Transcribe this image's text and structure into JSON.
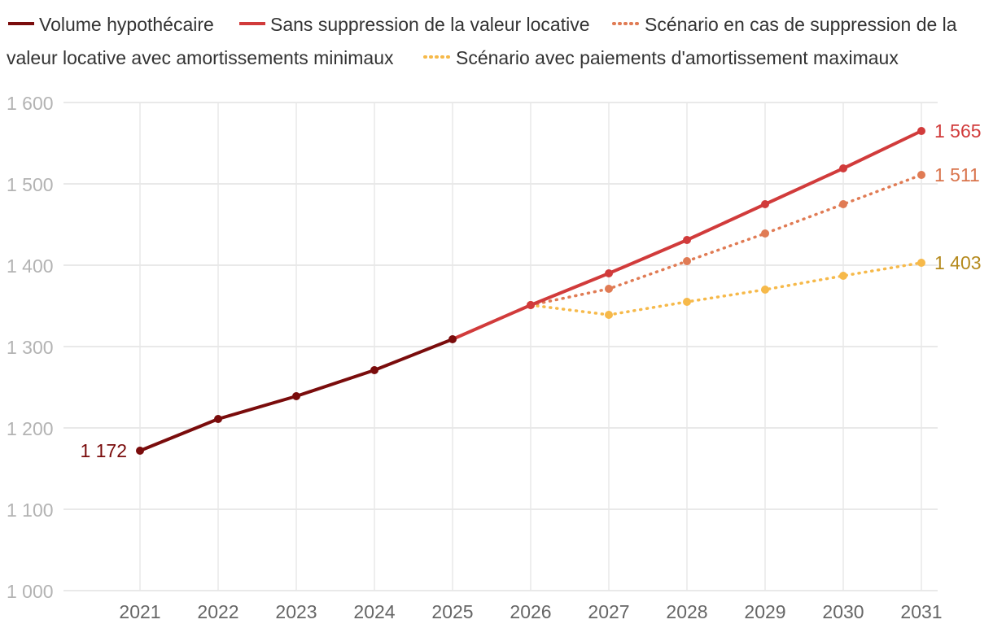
{
  "chart_data": {
    "type": "line",
    "title": "",
    "xlabel": "",
    "ylabel": "",
    "x": [
      "2021",
      "2022",
      "2023",
      "2024",
      "2025",
      "2026",
      "2027",
      "2028",
      "2029",
      "2030",
      "2031"
    ],
    "ylim": [
      1000,
      1600
    ],
    "yticks": [
      1000,
      1100,
      1200,
      1300,
      1400,
      1500,
      1600
    ],
    "ytick_labels": [
      "1 000",
      "1 100",
      "1 200",
      "1 300",
      "1 400",
      "1 500",
      "1 600"
    ],
    "grid": true,
    "legend": "top",
    "series": [
      {
        "name": "Volume hypothécaire",
        "color": "#7a0c0c",
        "style": "solid",
        "x": [
          "2021",
          "2022",
          "2023",
          "2024",
          "2025"
        ],
        "values": [
          1172,
          1211,
          1239,
          1271,
          1309
        ]
      },
      {
        "name": "Sans suppression de la valeur locative",
        "color": "#d13b3b",
        "style": "solid",
        "x": [
          "2025",
          "2026",
          "2027",
          "2028",
          "2029",
          "2030",
          "2031"
        ],
        "values": [
          1309,
          1351,
          1390,
          1431,
          1475,
          1519,
          1565
        ]
      },
      {
        "name": "Scénario en cas de suppression de la valeur locative avec amortissements minimaux",
        "color": "#e07b54",
        "style": "dotted",
        "x": [
          "2026",
          "2027",
          "2028",
          "2029",
          "2030",
          "2031"
        ],
        "values": [
          1351,
          1371,
          1405,
          1439,
          1475,
          1511
        ]
      },
      {
        "name": "Scénario avec paiements d'amortissement maximaux",
        "color": "#f6b94a",
        "style": "dotted",
        "x": [
          "2026",
          "2027",
          "2028",
          "2029",
          "2030",
          "2031"
        ],
        "values": [
          1351,
          1339,
          1355,
          1370,
          1387,
          1403
        ]
      }
    ],
    "annotations": [
      {
        "text": "1 172",
        "x": "2021",
        "value": 1172,
        "color": "#7a0c0c"
      },
      {
        "text": "1 565",
        "x": "2031",
        "value": 1565,
        "color": "#d13b3b"
      },
      {
        "text": "1 511",
        "x": "2031",
        "value": 1511,
        "color": "#d9744c"
      },
      {
        "text": "1 403",
        "x": "2031",
        "value": 1403,
        "color": "#b58a1e"
      }
    ]
  }
}
